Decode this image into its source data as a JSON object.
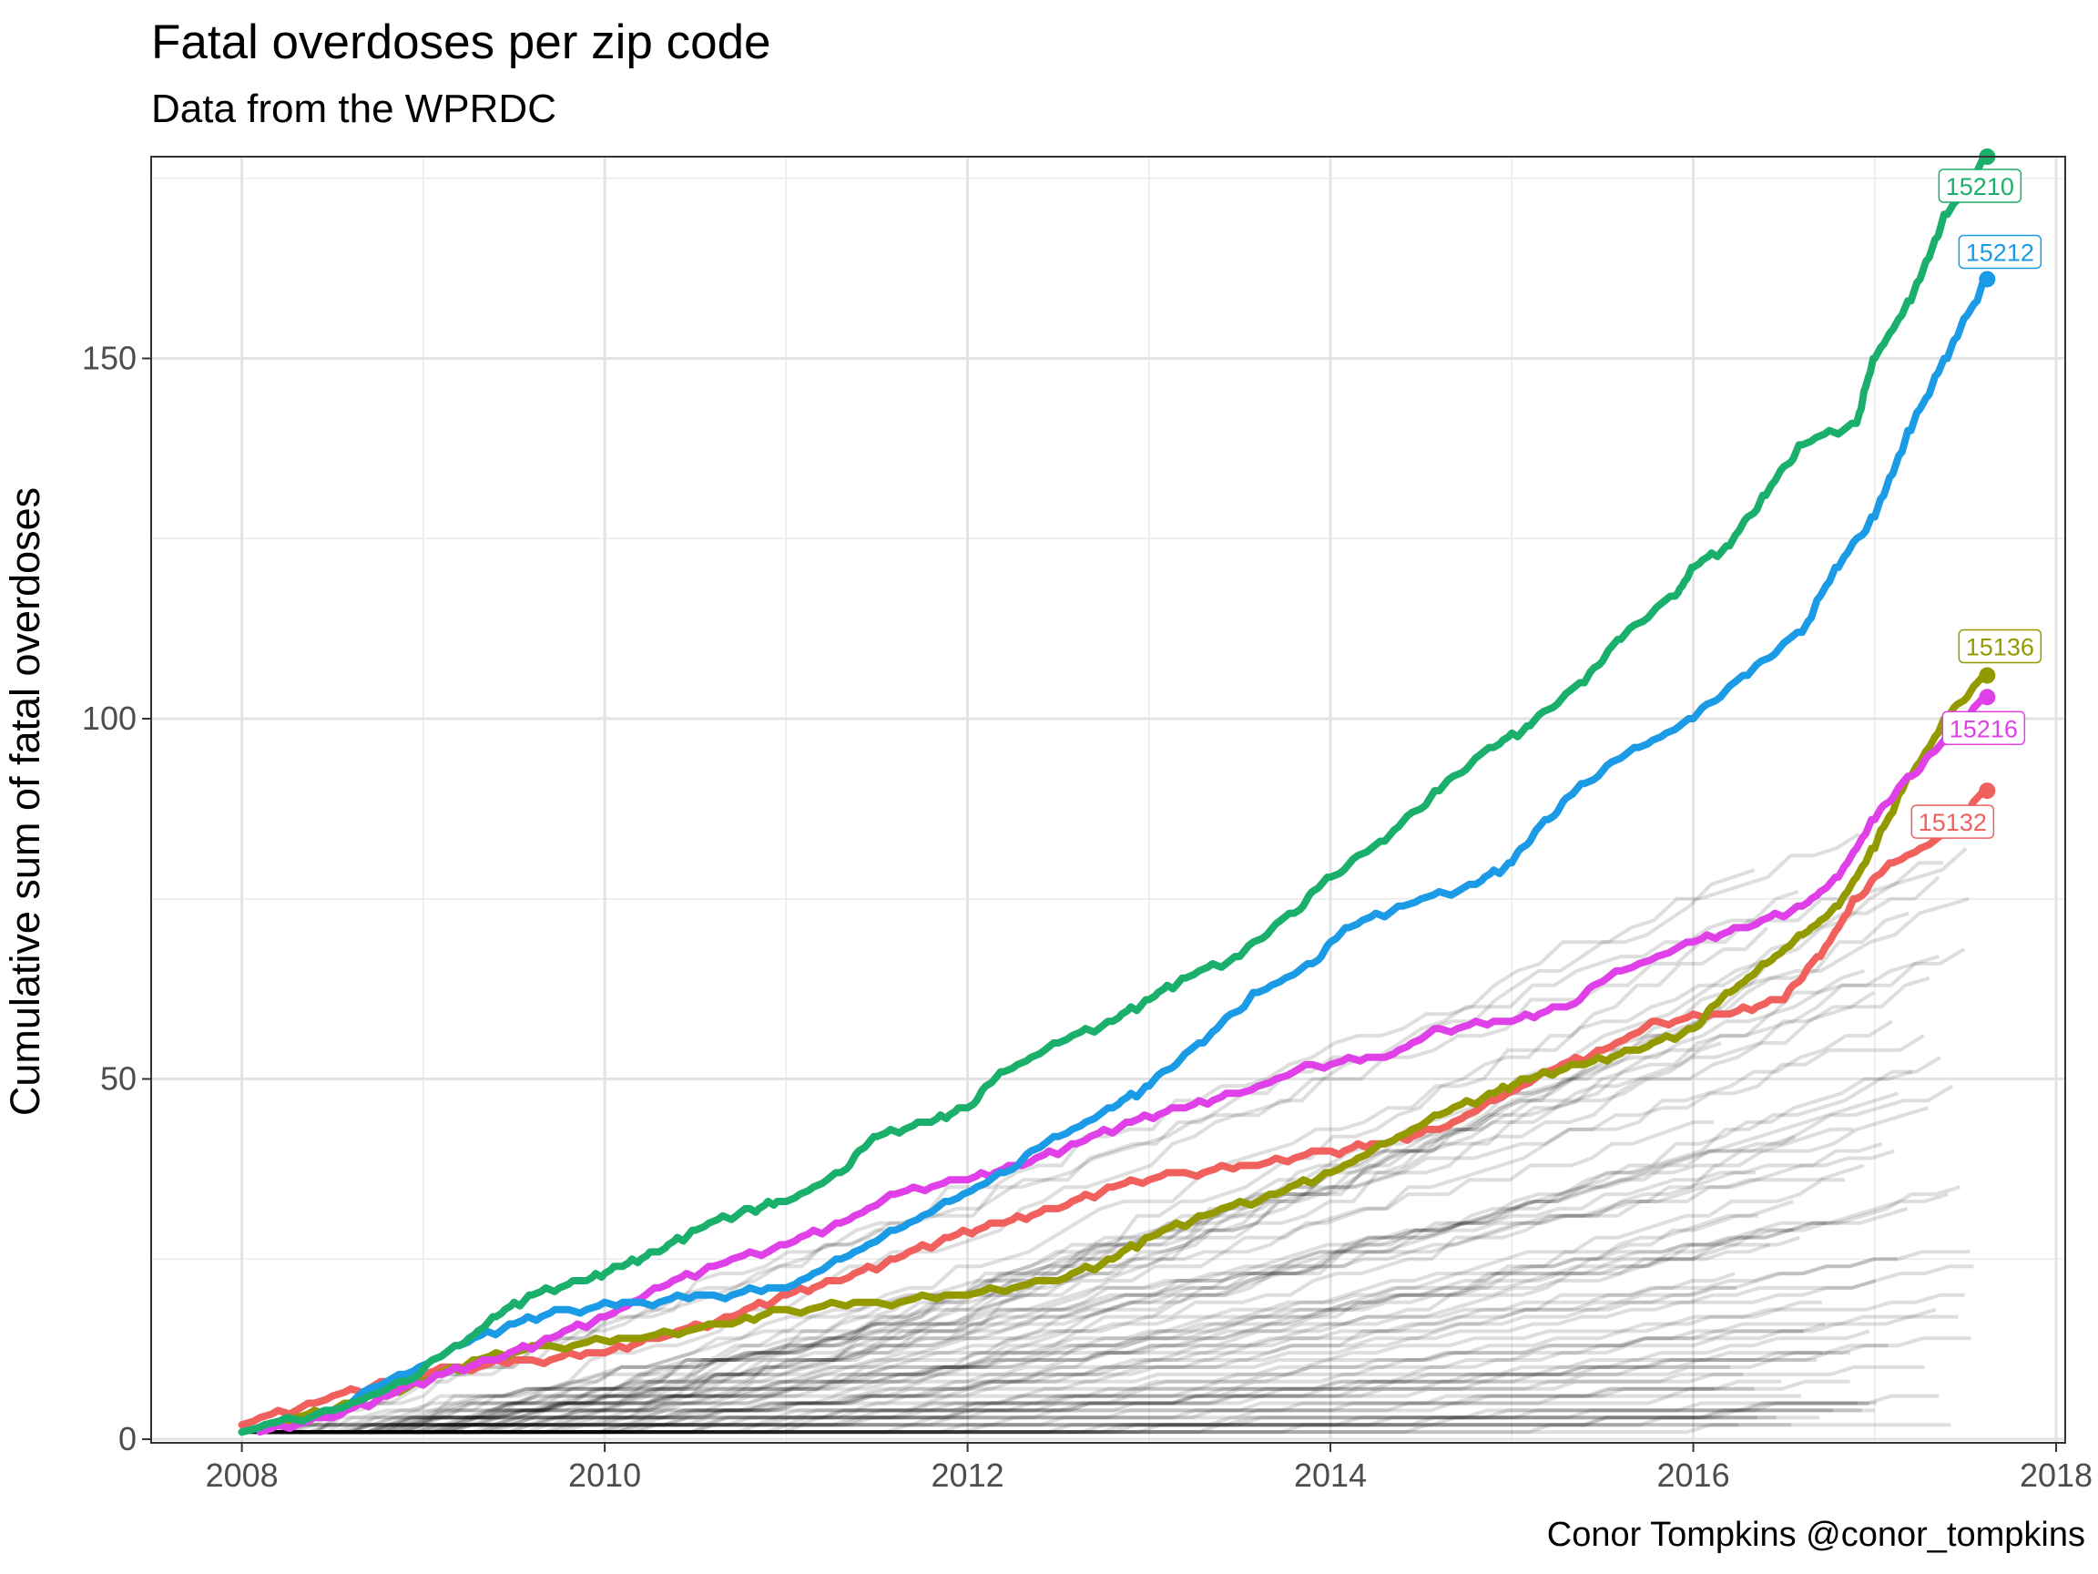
{
  "chart_data": {
    "type": "line",
    "title": "Fatal overdoses per zip code",
    "subtitle": "Data from the WPRDC",
    "xlabel": "",
    "ylabel": "Cumulative sum of fatal overdoses",
    "caption": "Conor Tompkins @conor_tompkins",
    "xlim": [
      2007.5,
      2018.05
    ],
    "ylim": [
      -0.5,
      178
    ],
    "x_ticks": [
      2008,
      2010,
      2012,
      2014,
      2016,
      2018
    ],
    "y_ticks": [
      0,
      50,
      100,
      150
    ],
    "grid": true,
    "highlighted_series": [
      {
        "name": "15210",
        "color": "#1aaf6b",
        "end": [
          2017.62,
          178
        ],
        "points": [
          [
            2008.0,
            1
          ],
          [
            2008.5,
            4
          ],
          [
            2008.9,
            8
          ],
          [
            2009.2,
            13
          ],
          [
            2009.4,
            17
          ],
          [
            2009.6,
            20
          ],
          [
            2009.9,
            22
          ],
          [
            2010.1,
            24
          ],
          [
            2010.3,
            26
          ],
          [
            2010.5,
            29
          ],
          [
            2010.8,
            32
          ],
          [
            2011.0,
            33
          ],
          [
            2011.3,
            37
          ],
          [
            2011.5,
            42
          ],
          [
            2011.8,
            44
          ],
          [
            2012.0,
            46
          ],
          [
            2012.2,
            51
          ],
          [
            2012.5,
            55
          ],
          [
            2012.8,
            58
          ],
          [
            2013.0,
            61
          ],
          [
            2013.2,
            64
          ],
          [
            2013.5,
            67
          ],
          [
            2013.8,
            73
          ],
          [
            2014.0,
            78
          ],
          [
            2014.3,
            83
          ],
          [
            2014.6,
            90
          ],
          [
            2014.9,
            96
          ],
          [
            2015.1,
            99
          ],
          [
            2015.4,
            105
          ],
          [
            2015.6,
            111
          ],
          [
            2015.9,
            117
          ],
          [
            2016.0,
            121
          ],
          [
            2016.2,
            124
          ],
          [
            2016.4,
            131
          ],
          [
            2016.6,
            138
          ],
          [
            2016.9,
            141
          ],
          [
            2017.0,
            150
          ],
          [
            2017.2,
            158
          ],
          [
            2017.4,
            170
          ],
          [
            2017.62,
            178
          ]
        ]
      },
      {
        "name": "15212",
        "color": "#1b9ae6",
        "end": [
          2017.62,
          161
        ],
        "points": [
          [
            2008.0,
            1
          ],
          [
            2008.5,
            4
          ],
          [
            2008.9,
            9
          ],
          [
            2009.2,
            13
          ],
          [
            2009.5,
            16
          ],
          [
            2009.8,
            18
          ],
          [
            2010.2,
            19
          ],
          [
            2010.6,
            20
          ],
          [
            2011.0,
            21
          ],
          [
            2011.3,
            25
          ],
          [
            2011.6,
            29
          ],
          [
            2011.9,
            33
          ],
          [
            2012.2,
            37
          ],
          [
            2012.5,
            42
          ],
          [
            2012.8,
            46
          ],
          [
            2013.0,
            49
          ],
          [
            2013.3,
            55
          ],
          [
            2013.6,
            62
          ],
          [
            2013.9,
            66
          ],
          [
            2014.1,
            71
          ],
          [
            2014.4,
            74
          ],
          [
            2014.8,
            77
          ],
          [
            2015.0,
            80
          ],
          [
            2015.2,
            86
          ],
          [
            2015.4,
            91
          ],
          [
            2015.7,
            96
          ],
          [
            2016.0,
            100
          ],
          [
            2016.3,
            106
          ],
          [
            2016.6,
            112
          ],
          [
            2016.8,
            121
          ],
          [
            2017.0,
            128
          ],
          [
            2017.2,
            140
          ],
          [
            2017.4,
            150
          ],
          [
            2017.62,
            161
          ]
        ]
      },
      {
        "name": "15136",
        "color": "#939a00",
        "end": [
          2017.62,
          106
        ],
        "points": [
          [
            2008.2,
            2
          ],
          [
            2008.6,
            5
          ],
          [
            2009.0,
            8
          ],
          [
            2009.3,
            11
          ],
          [
            2009.7,
            13
          ],
          [
            2010.2,
            14
          ],
          [
            2010.7,
            16
          ],
          [
            2011.0,
            18
          ],
          [
            2011.5,
            19
          ],
          [
            2012.0,
            20
          ],
          [
            2012.5,
            22
          ],
          [
            2012.8,
            25
          ],
          [
            2013.0,
            28
          ],
          [
            2013.3,
            31
          ],
          [
            2013.7,
            34
          ],
          [
            2014.0,
            37
          ],
          [
            2014.3,
            41
          ],
          [
            2014.6,
            45
          ],
          [
            2014.9,
            48
          ],
          [
            2015.1,
            50
          ],
          [
            2015.4,
            52
          ],
          [
            2015.7,
            54
          ],
          [
            2016.0,
            57
          ],
          [
            2016.2,
            62
          ],
          [
            2016.4,
            66
          ],
          [
            2016.6,
            70
          ],
          [
            2016.8,
            74
          ],
          [
            2017.0,
            82
          ],
          [
            2017.2,
            92
          ],
          [
            2017.4,
            100
          ],
          [
            2017.62,
            106
          ]
        ]
      },
      {
        "name": "15216",
        "color": "#e040e8",
        "end": [
          2017.62,
          103
        ],
        "points": [
          [
            2008.1,
            1
          ],
          [
            2008.5,
            3
          ],
          [
            2008.8,
            6
          ],
          [
            2009.1,
            9
          ],
          [
            2009.4,
            11
          ],
          [
            2009.7,
            14
          ],
          [
            2010.0,
            17
          ],
          [
            2010.3,
            21
          ],
          [
            2010.6,
            24
          ],
          [
            2011.0,
            27
          ],
          [
            2011.3,
            30
          ],
          [
            2011.6,
            34
          ],
          [
            2012.0,
            36
          ],
          [
            2012.3,
            38
          ],
          [
            2012.6,
            41
          ],
          [
            2012.9,
            44
          ],
          [
            2013.2,
            46
          ],
          [
            2013.5,
            48
          ],
          [
            2013.9,
            52
          ],
          [
            2014.3,
            53
          ],
          [
            2014.6,
            57
          ],
          [
            2015.0,
            58
          ],
          [
            2015.3,
            60
          ],
          [
            2015.6,
            65
          ],
          [
            2016.0,
            69
          ],
          [
            2016.3,
            71
          ],
          [
            2016.6,
            74
          ],
          [
            2016.8,
            78
          ],
          [
            2017.0,
            86
          ],
          [
            2017.2,
            92
          ],
          [
            2017.4,
            97
          ],
          [
            2017.62,
            103
          ]
        ]
      },
      {
        "name": "15132",
        "color": "#f0615e",
        "end": [
          2017.62,
          90
        ],
        "points": [
          [
            2008.0,
            2
          ],
          [
            2008.4,
            5
          ],
          [
            2008.8,
            8
          ],
          [
            2009.2,
            10
          ],
          [
            2009.6,
            11
          ],
          [
            2010.0,
            12
          ],
          [
            2010.3,
            14
          ],
          [
            2010.7,
            17
          ],
          [
            2011.0,
            20
          ],
          [
            2011.3,
            22
          ],
          [
            2011.6,
            25
          ],
          [
            2011.9,
            28
          ],
          [
            2012.2,
            30
          ],
          [
            2012.5,
            32
          ],
          [
            2012.8,
            35
          ],
          [
            2013.2,
            37
          ],
          [
            2013.6,
            38
          ],
          [
            2014.0,
            40
          ],
          [
            2014.3,
            41
          ],
          [
            2014.6,
            43
          ],
          [
            2014.9,
            47
          ],
          [
            2015.2,
            51
          ],
          [
            2015.5,
            54
          ],
          [
            2015.8,
            58
          ],
          [
            2016.2,
            59
          ],
          [
            2016.5,
            61
          ],
          [
            2016.7,
            67
          ],
          [
            2016.9,
            75
          ],
          [
            2017.1,
            80
          ],
          [
            2017.4,
            84
          ],
          [
            2017.62,
            90
          ]
        ]
      }
    ],
    "background_series": {
      "count": 80,
      "color": "#000000",
      "opacity": 0.13,
      "end_values": [
        84,
        82,
        80,
        79,
        78,
        76,
        75,
        73,
        71,
        70,
        68,
        67,
        65,
        64,
        62,
        60,
        58,
        56,
        55,
        53,
        51,
        49,
        48,
        46,
        44,
        43,
        42,
        41,
        40,
        38,
        37,
        36,
        35,
        34,
        33,
        32,
        31,
        30,
        29,
        28,
        27,
        26,
        25,
        24,
        23,
        22,
        21,
        20,
        19,
        18,
        17,
        16,
        15,
        15,
        14,
        13,
        12,
        12,
        11,
        10,
        10,
        9,
        8,
        8,
        7,
        7,
        6,
        6,
        5,
        5,
        5,
        4,
        4,
        4,
        3,
        3,
        3,
        2,
        2,
        2
      ]
    }
  }
}
